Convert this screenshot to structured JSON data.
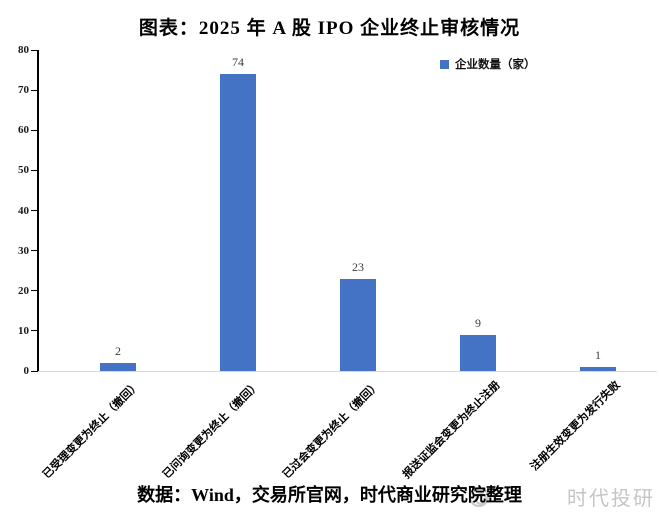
{
  "title": "图表：2025 年 A 股 IPO 企业终止审核情况",
  "legend": {
    "label": "企业数量（家）"
  },
  "source_note": "数据：Wind，交易所官网，时代商业研究院整理",
  "watermark": {
    "text": "时代投研",
    "logo": "double-circle-logo"
  },
  "colors": {
    "bar": "#4472C4",
    "y_axis": "#000000",
    "x_baseline": "#d9d9d9",
    "watermark": "#c5c5c5"
  },
  "chart_data": {
    "type": "bar",
    "title": "图表：2025 年 A 股 IPO 企业终止审核情况",
    "series_name": "企业数量（家）",
    "categories": [
      "已受理变更为终止（撤回）",
      "已问询变更为终止（撤回）",
      "已过会变更为终止（撤回）",
      "报送证监会变更为终止注册",
      "注册生效变更为发行失败"
    ],
    "values": [
      2,
      74,
      23,
      9,
      1
    ],
    "data_labels": true,
    "xlabel": "",
    "ylabel": "",
    "ylim": [
      0,
      80
    ],
    "yticks": [
      0,
      10,
      20,
      30,
      40,
      50,
      60,
      70,
      80
    ],
    "grid": false,
    "legend_position": "top-right",
    "bar_color": "#4472C4"
  }
}
